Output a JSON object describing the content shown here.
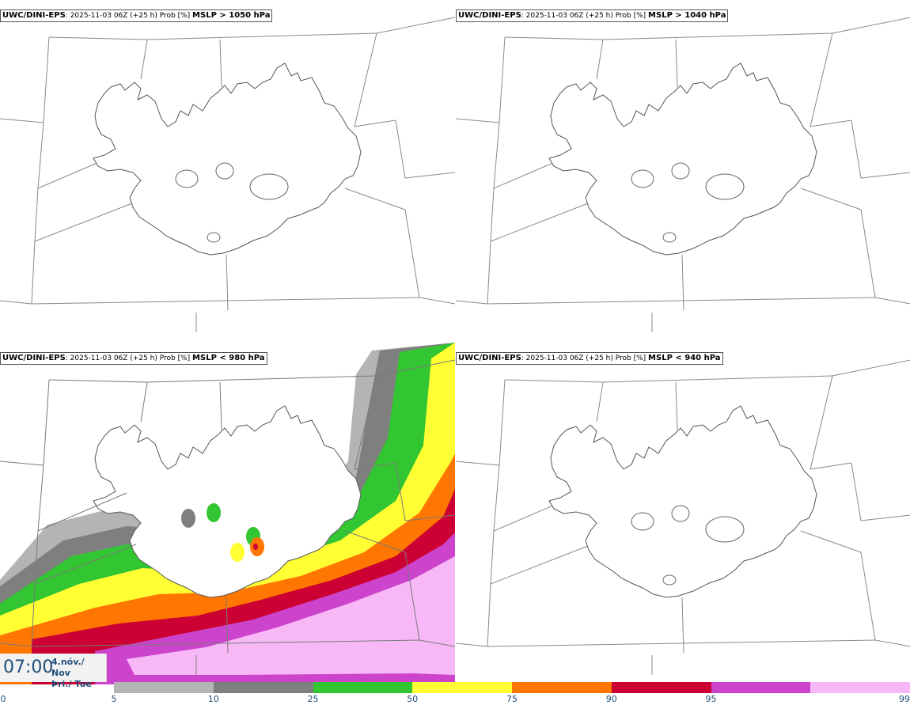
{
  "panels": [
    {
      "model": "UWC/DINI-EPS",
      "run_info": ": 2025-11-03 06Z (+25 h) Prob [%]",
      "threshold": "MSLP > 1050 hPa",
      "filled": false
    },
    {
      "model": "UWC/DINI-EPS",
      "run_info": ": 2025-11-03 06Z (+25 h) Prob [%]",
      "threshold": "MSLP > 1040 hPa",
      "filled": false
    },
    {
      "model": "UWC/DINI-EPS",
      "run_info": ": 2025-11-03 06Z (+25 h) Prob [%]",
      "threshold": "MSLP < 980 hPa",
      "filled": true
    },
    {
      "model": "UWC/DINI-EPS",
      "run_info": ": 2025-11-03 06Z (+25 h) Prob [%]",
      "threshold": "MSLP < 940 hPa",
      "filled": false
    }
  ],
  "valid_time": {
    "time": "07:00",
    "date_line1": "4.nóv./ Nov",
    "date_line2": "Þri./ Tue"
  },
  "legend": {
    "ticks": [
      "0",
      "5",
      "10",
      "25",
      "50",
      "75",
      "90",
      "95",
      "99"
    ],
    "colors": [
      "#b4b4b4",
      "#7f7f7f",
      "#33c633",
      "#ffff33",
      "#ff7700",
      "#cc0033",
      "#cc44cc",
      "#f8b8f8"
    ]
  }
}
